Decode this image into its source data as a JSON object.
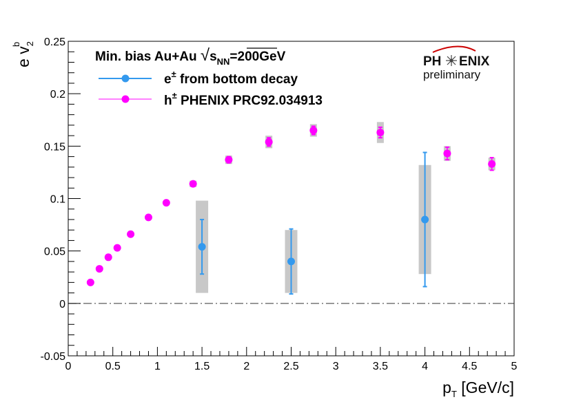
{
  "chart_data": {
    "type": "scatter",
    "title": "",
    "xlabel": "p_T [GeV/c]",
    "xlabel_main": "p",
    "xlabel_sub": "T",
    "xlabel_rest": " [GeV/c]",
    "ylabel_main": "e v",
    "ylabel_sub": "2",
    "ylabel_sup": "b",
    "xlim": [
      0,
      5
    ],
    "ylim": [
      -0.05,
      0.25
    ],
    "x_ticks": [
      0,
      0.5,
      1,
      1.5,
      2,
      2.5,
      3,
      3.5,
      4,
      4.5,
      5
    ],
    "x_tick_labels": [
      "0",
      "0.5",
      "1",
      "1.5",
      "2",
      "2.5",
      "3",
      "3.5",
      "4",
      "4.5",
      "5"
    ],
    "y_ticks": [
      -0.05,
      0,
      0.05,
      0.1,
      0.15,
      0.2,
      0.25
    ],
    "y_tick_labels": [
      "-0.05",
      "0",
      "0.05",
      "0.1",
      "0.15",
      "0.2",
      "0.25"
    ],
    "reference_line": {
      "y": 0,
      "style": "dash-dot"
    },
    "legend_header": {
      "prefix": "Min. bias Au+Au ",
      "sqrt_symbol": "√",
      "s_text": "s",
      "s_sub": "NN",
      "suffix": "=200GeV"
    },
    "series": [
      {
        "name": "e± from bottom decay",
        "legend_main": "e",
        "legend_sup": "±",
        "legend_rest": " from bottom decay",
        "color": "#3399ee",
        "syst_color": "#c8c8c8",
        "x": [
          1.5,
          2.5,
          4.0
        ],
        "y": [
          0.054,
          0.04,
          0.08
        ],
        "stat_err": [
          0.026,
          0.031,
          0.064
        ],
        "syst_err": [
          0.044,
          0.03,
          0.052
        ]
      },
      {
        "name": "h± PHENIX PRC92.034913",
        "legend_main": "h",
        "legend_sup": "±",
        "legend_rest": " PHENIX PRC92.034913",
        "color": "#ff00ff",
        "syst_color": "#c8c8c8",
        "x": [
          0.25,
          0.35,
          0.45,
          0.55,
          0.7,
          0.9,
          1.1,
          1.4,
          1.8,
          2.25,
          2.75,
          3.5,
          4.25,
          4.75
        ],
        "y": [
          0.02,
          0.033,
          0.044,
          0.053,
          0.066,
          0.082,
          0.096,
          0.114,
          0.137,
          0.154,
          0.165,
          0.163,
          0.143,
          0.133
        ],
        "stat_err": [
          0.001,
          0.001,
          0.001,
          0.001,
          0.001,
          0.001,
          0.001,
          0.002,
          0.003,
          0.004,
          0.004,
          0.005,
          0.006,
          0.006
        ],
        "syst_err": [
          0.001,
          0.001,
          0.001,
          0.001,
          0.001,
          0.001,
          0.001,
          0.003,
          0.004,
          0.006,
          0.006,
          0.01,
          0.007,
          0.006
        ]
      }
    ]
  },
  "logo": {
    "text_left": "PH",
    "text_right": "ENIX",
    "preliminary": "preliminary",
    "arc_color": "#cc0000"
  }
}
